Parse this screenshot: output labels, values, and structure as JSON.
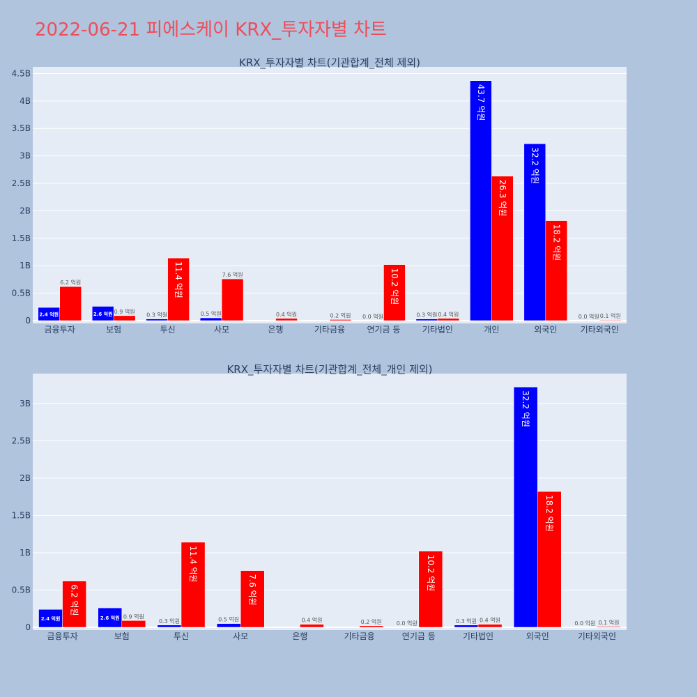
{
  "page_title": "2022-06-21 피에스케이 KRX_투자자별 차트",
  "colors": {
    "background": "#b0c4de",
    "plot_bg": "#e5ecf6",
    "title": "#ee4d5a",
    "buy": "#0000ff",
    "sell": "#ff0000",
    "grid": "#ffffff",
    "text": "#2a3f5f"
  },
  "chart_data": [
    {
      "type": "bar",
      "title": "KRX_투자자별 차트(기관합계_전체 제외)",
      "categories": [
        "금융투자",
        "보험",
        "투신",
        "사모",
        "은행",
        "기타금융",
        "연기금 등",
        "기타법인",
        "개인",
        "외국인",
        "기타외국인"
      ],
      "series": [
        {
          "color": "#0000ff",
          "values": [
            0.24,
            0.26,
            0.03,
            0.05,
            0.0,
            0.0,
            0.0,
            0.03,
            4.37,
            3.22,
            0.0
          ],
          "labels": [
            "2.4 억원",
            "2.6 억원",
            "0.3 억원",
            "0.5 억원",
            "",
            "",
            "0.0 억원",
            "0.3 억원",
            "43.7 억원",
            "32.2 억원",
            "0.0 억원"
          ]
        },
        {
          "color": "#ff0000",
          "values": [
            0.62,
            0.09,
            1.14,
            0.76,
            0.04,
            0.02,
            1.02,
            0.04,
            2.63,
            1.82,
            0.01
          ],
          "labels": [
            "6.2 억원",
            "0.9 억원",
            "11.4 억원",
            "7.6 억원",
            "0.4 억원",
            "0.2 억원",
            "10.2 억원",
            "0.4 억원",
            "26.3 억원",
            "18.2 억원",
            "0.1 억원"
          ]
        }
      ],
      "yticks": [
        "0",
        "0.5B",
        "1B",
        "1.5B",
        "2B",
        "2.5B",
        "3B",
        "3.5B",
        "4B",
        "4.5B"
      ],
      "ylim": [
        0,
        4.62
      ]
    },
    {
      "type": "bar",
      "title": "KRX_투자자별 차트(기관합계_전체_개인 제외)",
      "categories": [
        "금융투자",
        "보험",
        "투신",
        "사모",
        "은행",
        "기타금융",
        "연기금 등",
        "기타법인",
        "외국인",
        "기타외국인"
      ],
      "series": [
        {
          "color": "#0000ff",
          "values": [
            0.24,
            0.26,
            0.03,
            0.05,
            0.0,
            0.0,
            0.0,
            0.03,
            3.22,
            0.0
          ],
          "labels": [
            "2.4 억원",
            "2.6 억원",
            "0.3 억원",
            "0.5 억원",
            "",
            "",
            "0.0 억원",
            "0.3 억원",
            "32.2 억원",
            "0.0 억원"
          ]
        },
        {
          "color": "#ff0000",
          "values": [
            0.62,
            0.09,
            1.14,
            0.76,
            0.04,
            0.02,
            1.02,
            0.04,
            1.82,
            0.01
          ],
          "labels": [
            "6.2 억원",
            "0.9 억원",
            "11.4 억원",
            "7.6 억원",
            "0.4 억원",
            "0.2 억원",
            "10.2 억원",
            "0.4 억원",
            "18.2 억원",
            "0.1 억원"
          ]
        }
      ],
      "yticks": [
        "0",
        "0.5B",
        "1B",
        "1.5B",
        "2B",
        "2.5B",
        "3B"
      ],
      "ylim": [
        0,
        3.4
      ]
    }
  ]
}
